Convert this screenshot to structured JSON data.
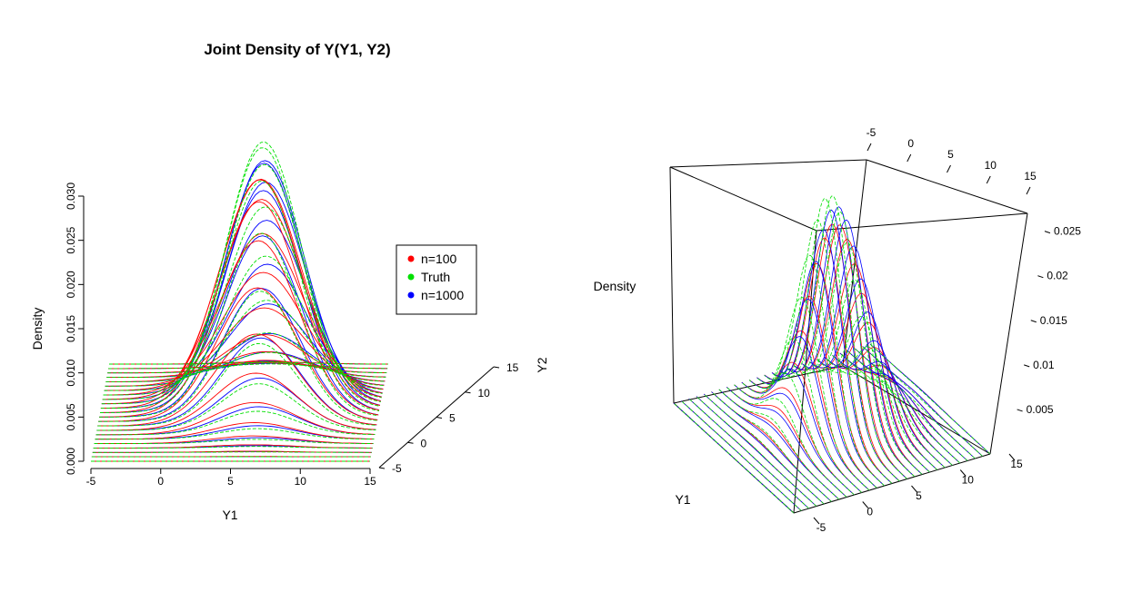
{
  "chart_data": [
    {
      "type": "line",
      "view": "side-projection",
      "title": "Joint Density of Y(Y1, Y2)",
      "xlabel": "Y1",
      "ylabel": "Density",
      "zlabel": "Y2",
      "xlim": [
        -5,
        15
      ],
      "ylim": [
        0,
        0.03
      ],
      "zlim": [
        -5,
        15
      ],
      "x_ticks": [
        "-5",
        "0",
        "5",
        "10",
        "15"
      ],
      "y_ticks": [
        "0.000",
        "0.005",
        "0.010",
        "0.015",
        "0.020",
        "0.025",
        "0.030"
      ],
      "z_ticks": [
        "-5",
        "0",
        "5",
        "10",
        "15"
      ],
      "legend_position": "right",
      "series": [
        {
          "name": "n=100",
          "color": "#ff0000",
          "mean": [
            6.4,
            6.2
          ],
          "sd": [
            2.9,
            2.9
          ],
          "peak": 0.026,
          "linestyle": "solid"
        },
        {
          "name": "Truth",
          "color": "#00e000",
          "mean": [
            6.6,
            6.4
          ],
          "sd": [
            2.7,
            2.7
          ],
          "peak": 0.03,
          "linestyle": "dashed"
        },
        {
          "name": "n=1000",
          "color": "#0000ff",
          "mean": [
            6.7,
            6.3
          ],
          "sd": [
            2.8,
            2.8
          ],
          "peak": 0.028,
          "linestyle": "solid"
        }
      ]
    },
    {
      "type": "line",
      "view": "perspective-3d",
      "xlabel": "Y1",
      "zlabel": "Density",
      "z_ticks": [
        "0.005",
        "0.01",
        "0.015",
        "0.02",
        "0.025"
      ],
      "y2_ticks": [
        "-5",
        "0",
        "5",
        "10",
        "15"
      ],
      "y1_ticks": [
        "-5",
        "0",
        "5",
        "10",
        "15"
      ],
      "series_colors": [
        "#ff0000",
        "#00e000",
        "#0000ff"
      ]
    }
  ]
}
